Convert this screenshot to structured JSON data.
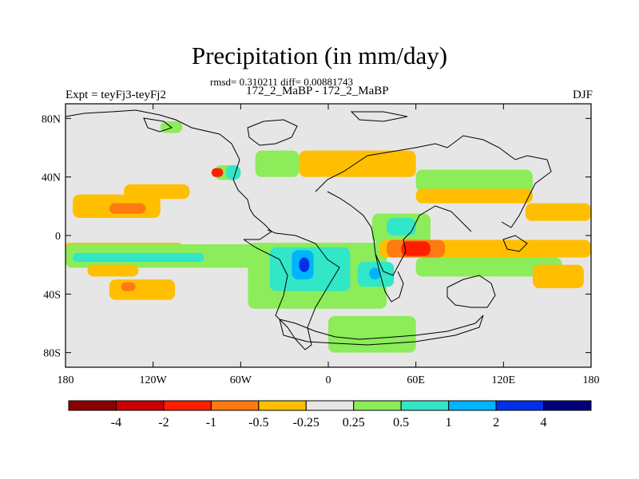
{
  "chart_data": {
    "type": "heatmap",
    "title": "Precipitation (in mm/day)",
    "stats": "rmsd= 0.310211 diff= 0.00881743",
    "run_label": "172_2_MaBP - 172_2_MaBP",
    "left_label": "Expt = teyFj3-teyFj2",
    "right_label": "DJF",
    "x_ticks": [
      {
        "value": -180,
        "label": "180"
      },
      {
        "value": -120,
        "label": "120W"
      },
      {
        "value": -60,
        "label": "60W"
      },
      {
        "value": 0,
        "label": "0"
      },
      {
        "value": 60,
        "label": "60E"
      },
      {
        "value": 120,
        "label": "120E"
      },
      {
        "value": 180,
        "label": "180"
      }
    ],
    "y_ticks": [
      {
        "value": 80,
        "label": "80N"
      },
      {
        "value": 40,
        "label": "40N"
      },
      {
        "value": 0,
        "label": "0"
      },
      {
        "value": -40,
        "label": "40S"
      },
      {
        "value": -80,
        "label": "80S"
      }
    ],
    "xlim": [
      -180,
      180
    ],
    "ylim": [
      -90,
      90
    ],
    "colorbar": {
      "colors": [
        "#8b0000",
        "#cc0000",
        "#ff1e00",
        "#ff7a10",
        "#ffbf00",
        "#e6e6e6",
        "#8cec5a",
        "#32e6c8",
        "#00b4ff",
        "#0030e6",
        "#00007a"
      ],
      "labels": [
        "-4",
        "-2",
        "-1",
        "-0.5",
        "-0.25",
        "0.25",
        "0.5",
        "1",
        "2",
        "4"
      ]
    },
    "background_color": "#e6e6e6",
    "regions": [
      {
        "level": "-0.25",
        "color": "#ffbf00",
        "lon": [
          -175,
          -115
        ],
        "lat": [
          12,
          28
        ]
      },
      {
        "level": "-0.5",
        "color": "#ff7a10",
        "lon": [
          -150,
          -125
        ],
        "lat": [
          15,
          22
        ]
      },
      {
        "level": "-0.25",
        "color": "#ffbf00",
        "lon": [
          -140,
          -95
        ],
        "lat": [
          25,
          35
        ]
      },
      {
        "level": "-0.25",
        "color": "#ffbf00",
        "lon": [
          -180,
          -100
        ],
        "lat": [
          -10,
          -5
        ]
      },
      {
        "level": "0.5",
        "color": "#8cec5a",
        "lon": [
          -180,
          -40
        ],
        "lat": [
          -22,
          -6
        ]
      },
      {
        "level": "1",
        "color": "#32e6c8",
        "lon": [
          -175,
          -85
        ],
        "lat": [
          -18,
          -12
        ]
      },
      {
        "level": "0.5",
        "color": "#8cec5a",
        "lon": [
          -78,
          -62
        ],
        "lat": [
          38,
          48
        ]
      },
      {
        "level": "-1",
        "color": "#ff1e00",
        "lon": [
          -80,
          -72
        ],
        "lat": [
          40,
          46
        ]
      },
      {
        "level": "1",
        "color": "#32e6c8",
        "lon": [
          -70,
          -60
        ],
        "lat": [
          38,
          48
        ]
      },
      {
        "level": "-0.25",
        "color": "#ffbf00",
        "lon": [
          -165,
          -130
        ],
        "lat": [
          -28,
          -20
        ]
      },
      {
        "level": "-0.25",
        "color": "#ffbf00",
        "lon": [
          -150,
          -105
        ],
        "lat": [
          -44,
          -30
        ]
      },
      {
        "level": "-0.5",
        "color": "#ff7a10",
        "lon": [
          -142,
          -132
        ],
        "lat": [
          -38,
          -32
        ]
      },
      {
        "level": "0.5",
        "color": "#8cec5a",
        "lon": [
          -55,
          40
        ],
        "lat": [
          -50,
          -5
        ]
      },
      {
        "level": "1",
        "color": "#32e6c8",
        "lon": [
          -40,
          15
        ],
        "lat": [
          -38,
          -8
        ]
      },
      {
        "level": "2",
        "color": "#00b4ff",
        "lon": [
          -25,
          -10
        ],
        "lat": [
          -30,
          -10
        ]
      },
      {
        "level": "4",
        "color": "#0030e6",
        "lon": [
          -20,
          -13
        ],
        "lat": [
          -25,
          -15
        ]
      },
      {
        "level": "1",
        "color": "#32e6c8",
        "lon": [
          20,
          45
        ],
        "lat": [
          -35,
          -18
        ]
      },
      {
        "level": "2",
        "color": "#00b4ff",
        "lon": [
          28,
          36
        ],
        "lat": [
          -30,
          -22
        ]
      },
      {
        "level": "0.5",
        "color": "#8cec5a",
        "lon": [
          30,
          70
        ],
        "lat": [
          -5,
          15
        ]
      },
      {
        "level": "1",
        "color": "#32e6c8",
        "lon": [
          40,
          60
        ],
        "lat": [
          0,
          12
        ]
      },
      {
        "level": "-0.25",
        "color": "#ffbf00",
        "lon": [
          35,
          180
        ],
        "lat": [
          -15,
          -3
        ]
      },
      {
        "level": "-0.5",
        "color": "#ff7a10",
        "lon": [
          40,
          80
        ],
        "lat": [
          -15,
          -3
        ]
      },
      {
        "level": "-1",
        "color": "#ff1e00",
        "lon": [
          50,
          70
        ],
        "lat": [
          -14,
          -4
        ]
      },
      {
        "level": "0.5",
        "color": "#8cec5a",
        "lon": [
          60,
          160
        ],
        "lat": [
          -28,
          -15
        ]
      },
      {
        "level": "0.5",
        "color": "#8cec5a",
        "lon": [
          0,
          60
        ],
        "lat": [
          -80,
          -55
        ]
      },
      {
        "level": "-0.25",
        "color": "#ffbf00",
        "lon": [
          -20,
          60
        ],
        "lat": [
          40,
          58
        ]
      },
      {
        "level": "0.5",
        "color": "#8cec5a",
        "lon": [
          -50,
          -20
        ],
        "lat": [
          40,
          58
        ]
      },
      {
        "level": "0.5",
        "color": "#8cec5a",
        "lon": [
          60,
          140
        ],
        "lat": [
          30,
          45
        ]
      },
      {
        "level": "-0.25",
        "color": "#ffbf00",
        "lon": [
          60,
          140
        ],
        "lat": [
          22,
          32
        ]
      },
      {
        "level": "-0.25",
        "color": "#ffbf00",
        "lon": [
          135,
          180
        ],
        "lat": [
          10,
          22
        ]
      },
      {
        "level": "-0.25",
        "color": "#ffbf00",
        "lon": [
          140,
          175
        ],
        "lat": [
          -36,
          -20
        ]
      },
      {
        "level": "0.5",
        "color": "#8cec5a",
        "lon": [
          -115,
          -100
        ],
        "lat": [
          70,
          78
        ]
      }
    ]
  }
}
